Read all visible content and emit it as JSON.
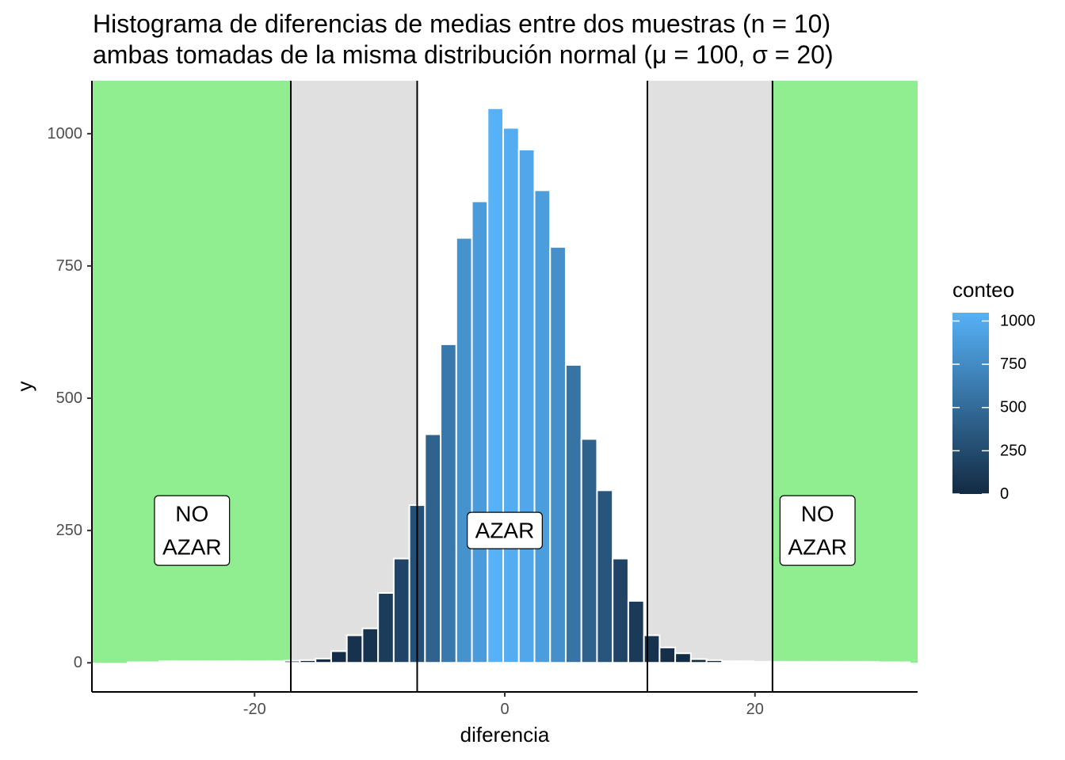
{
  "chart_data": {
    "type": "bar",
    "title_lines": [
      "Histograma de diferencias de medias entre dos muestras (n = 10)",
      "ambas tomadas de la misma distribución normal (μ = 100, σ = 20)"
    ],
    "xlabel": "diferencia",
    "ylabel": "y",
    "xlim": [
      -33,
      33
    ],
    "ylim": [
      -55,
      1100
    ],
    "x_ticks": [
      -20,
      0,
      20
    ],
    "x_tick_labels": [
      "-20",
      "0",
      "20"
    ],
    "y_ticks": [
      0,
      250,
      500,
      750,
      1000
    ],
    "y_tick_labels": [
      "0",
      "250",
      "500",
      "750",
      "1000"
    ],
    "bin_width": 1.25,
    "bins": [
      {
        "x": -29.5,
        "count": 1
      },
      {
        "x": -28.25,
        "count": 1
      },
      {
        "x": -27.0,
        "count": 3
      },
      {
        "x": -25.75,
        "count": 3
      },
      {
        "x": -24.5,
        "count": 3
      },
      {
        "x": -23.25,
        "count": 3
      },
      {
        "x": -22.0,
        "count": 3
      },
      {
        "x": -20.75,
        "count": 3
      },
      {
        "x": -19.5,
        "count": 3
      },
      {
        "x": -18.25,
        "count": 3
      },
      {
        "x": -17.0,
        "count": 4
      },
      {
        "x": -15.75,
        "count": 5
      },
      {
        "x": -14.5,
        "count": 8
      },
      {
        "x": -13.25,
        "count": 22
      },
      {
        "x": -12.0,
        "count": 52
      },
      {
        "x": -10.75,
        "count": 65
      },
      {
        "x": -9.5,
        "count": 132
      },
      {
        "x": -8.25,
        "count": 197
      },
      {
        "x": -7.0,
        "count": 298
      },
      {
        "x": -5.75,
        "count": 432
      },
      {
        "x": -4.5,
        "count": 602
      },
      {
        "x": -3.25,
        "count": 803
      },
      {
        "x": -2.0,
        "count": 872
      },
      {
        "x": -0.75,
        "count": 1048
      },
      {
        "x": 0.5,
        "count": 1011
      },
      {
        "x": 1.75,
        "count": 970
      },
      {
        "x": 3.0,
        "count": 893
      },
      {
        "x": 4.25,
        "count": 786
      },
      {
        "x": 5.5,
        "count": 563
      },
      {
        "x": 6.75,
        "count": 423
      },
      {
        "x": 8.0,
        "count": 326
      },
      {
        "x": 9.25,
        "count": 197
      },
      {
        "x": 10.5,
        "count": 117
      },
      {
        "x": 11.75,
        "count": 52
      },
      {
        "x": 13.0,
        "count": 29
      },
      {
        "x": 14.25,
        "count": 18
      },
      {
        "x": 15.5,
        "count": 7
      },
      {
        "x": 16.75,
        "count": 5
      },
      {
        "x": 18.0,
        "count": 3
      },
      {
        "x": 19.25,
        "count": 3
      },
      {
        "x": 20.5,
        "count": 2
      },
      {
        "x": 21.75,
        "count": 2
      },
      {
        "x": 23.0,
        "count": 2
      },
      {
        "x": 24.25,
        "count": 2
      },
      {
        "x": 25.5,
        "count": 2
      },
      {
        "x": 26.75,
        "count": 2
      },
      {
        "x": 28.0,
        "count": 2
      },
      {
        "x": 29.25,
        "count": 2
      },
      {
        "x": 30.5,
        "count": 1
      },
      {
        "x": 31.75,
        "count": 1
      }
    ],
    "regions": [
      {
        "from": -33,
        "to": -17.1,
        "color": "#90EE90"
      },
      {
        "from": -17.1,
        "to": -7.0,
        "color": "#E0E0E0"
      },
      {
        "from": 11.4,
        "to": 21.4,
        "color": "#E0E0E0"
      },
      {
        "from": 21.4,
        "to": 33,
        "color": "#90EE90"
      }
    ],
    "vlines": [
      -17.1,
      -7.0,
      11.4,
      21.4
    ],
    "annotations": [
      {
        "x": -25,
        "y": 250,
        "lines": [
          "NO",
          "AZAR"
        ]
      },
      {
        "x": 0,
        "y": 250,
        "lines": [
          "AZAR"
        ]
      },
      {
        "x": 25,
        "y": 250,
        "lines": [
          "NO",
          "AZAR"
        ]
      }
    ],
    "legend": {
      "title": "conteo",
      "position": "right",
      "low_color": "#132B43",
      "high_color": "#56B1F7",
      "limits": [
        0,
        1048
      ],
      "breaks": [
        0,
        250,
        500,
        750,
        1000
      ],
      "break_labels": [
        "0",
        "250",
        "500",
        "750",
        "1000"
      ]
    }
  }
}
